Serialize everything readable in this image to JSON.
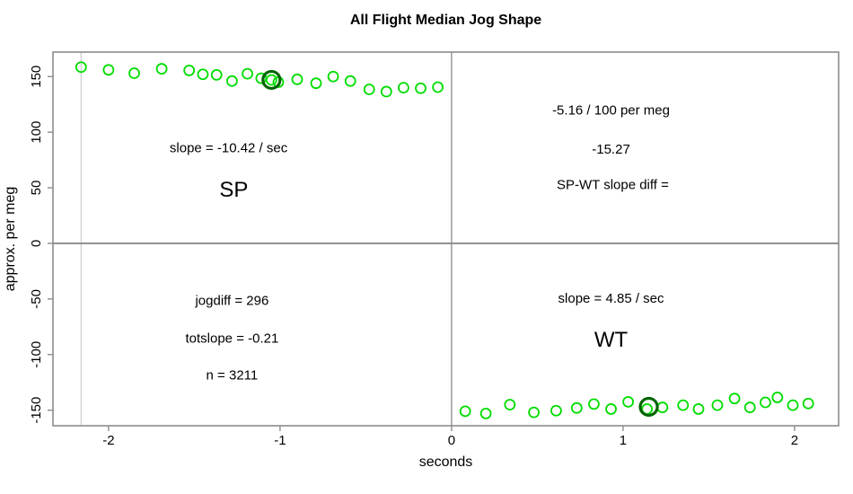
{
  "chart_data": {
    "type": "scatter",
    "title": "All Flight Median Jog Shape",
    "xlabel": "seconds",
    "ylabel": "approx. per meg",
    "xlim": [
      -2.324,
      2.257
    ],
    "ylim": [
      -164,
      172
    ],
    "x_ticks": [
      -2,
      -1,
      0,
      1,
      2
    ],
    "y_ticks": [
      -150,
      -100,
      -50,
      0,
      50,
      100,
      150
    ],
    "grid": {
      "vline_x": 0,
      "hline_y": 0,
      "faint_vline_x": -2.16
    },
    "colors": {
      "point_green": "#00dd00",
      "highlight_darkgreen": "#006400",
      "axis_gray": "#8c8c8c",
      "crossline_gray": "#8a8a8a",
      "faint_line_gray": "#cccccc",
      "text_black": "#000000"
    },
    "series": [
      {
        "name": "SP",
        "marker": "open-circle",
        "points": [
          [
            -2.16,
            158.5
          ],
          [
            -2.0,
            156.0
          ],
          [
            -1.85,
            153.0
          ],
          [
            -1.69,
            157.0
          ],
          [
            -1.53,
            155.5
          ],
          [
            -1.45,
            152.0
          ],
          [
            -1.37,
            151.5
          ],
          [
            -1.28,
            146.0
          ],
          [
            -1.19,
            152.5
          ],
          [
            -1.11,
            148.5
          ],
          [
            -1.05,
            147.0
          ],
          [
            -1.01,
            145.0
          ],
          [
            -0.9,
            147.5
          ],
          [
            -0.79,
            144.0
          ],
          [
            -0.69,
            150.0
          ],
          [
            -0.59,
            146.0
          ],
          [
            -0.48,
            138.5
          ],
          [
            -0.38,
            136.5
          ],
          [
            -0.28,
            140.0
          ],
          [
            -0.18,
            139.5
          ],
          [
            -0.08,
            140.5
          ]
        ],
        "highlight": [
          -1.05,
          147.0
        ]
      },
      {
        "name": "WT",
        "marker": "open-circle",
        "points": [
          [
            0.08,
            -151.0
          ],
          [
            0.2,
            -153.0
          ],
          [
            0.34,
            -145.0
          ],
          [
            0.48,
            -152.0
          ],
          [
            0.61,
            -150.5
          ],
          [
            0.73,
            -148.0
          ],
          [
            0.83,
            -144.5
          ],
          [
            0.93,
            -149.0
          ],
          [
            1.03,
            -142.5
          ],
          [
            1.14,
            -149.0
          ],
          [
            1.23,
            -147.5
          ],
          [
            1.35,
            -145.5
          ],
          [
            1.44,
            -149.0
          ],
          [
            1.55,
            -145.5
          ],
          [
            1.65,
            -139.5
          ],
          [
            1.74,
            -147.5
          ],
          [
            1.83,
            -143.0
          ],
          [
            1.9,
            -138.5
          ],
          [
            1.99,
            -145.5
          ],
          [
            2.08,
            -144.0
          ]
        ],
        "highlight": [
          1.15,
          -147.0
        ]
      }
    ],
    "annotations": [
      {
        "text": "slope = -10.42 / sec",
        "x": -1.3,
        "y": 85,
        "size": 15
      },
      {
        "text": "SP",
        "x": -1.27,
        "y": 47,
        "size": 24
      },
      {
        "text": "-5.16 / 100 per meg",
        "x": 0.93,
        "y": 119,
        "size": 15
      },
      {
        "text": "-15.27",
        "x": 0.93,
        "y": 84,
        "size": 15
      },
      {
        "text": "SP-WT slope diff =",
        "x": 0.94,
        "y": 52,
        "size": 15
      },
      {
        "text": "jogdiff = 296",
        "x": -1.28,
        "y": -52,
        "size": 15
      },
      {
        "text": "totslope = -0.21",
        "x": -1.28,
        "y": -86,
        "size": 15
      },
      {
        "text": "n = 3211",
        "x": -1.28,
        "y": -119,
        "size": 15
      },
      {
        "text": "slope = 4.85 / sec",
        "x": 0.93,
        "y": -50,
        "size": 15
      },
      {
        "text": "WT",
        "x": 0.93,
        "y": -88,
        "size": 24
      }
    ],
    "legend": null
  }
}
